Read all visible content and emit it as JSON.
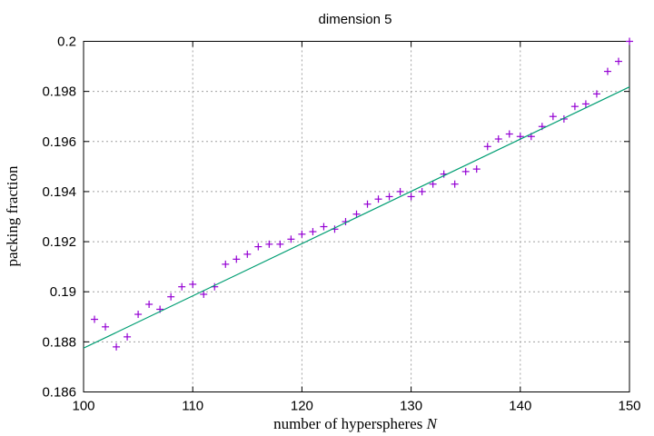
{
  "chart_data": {
    "type": "scatter",
    "title": "dimension 5",
    "xlabel_main": "number of hyperspheres ",
    "xlabel_var": "N",
    "ylabel": "packing fraction",
    "xlim": [
      100,
      150
    ],
    "ylim": [
      0.186,
      0.2
    ],
    "xticks": [
      100,
      110,
      120,
      130,
      140,
      150
    ],
    "yticks": [
      0.186,
      0.188,
      0.19,
      0.192,
      0.194,
      0.196,
      0.198,
      0.2
    ],
    "xtick_labels": [
      "100",
      "110",
      "120",
      "130",
      "140",
      "150"
    ],
    "ytick_labels": [
      "0.186",
      "0.188",
      "0.19",
      "0.192",
      "0.194",
      "0.196",
      "0.198",
      "0.2"
    ],
    "grid": true,
    "series": [
      {
        "marker": "plus",
        "color": "#9400d3",
        "x": [
          101,
          102,
          103,
          104,
          105,
          106,
          107,
          108,
          109,
          110,
          111,
          112,
          113,
          114,
          115,
          116,
          117,
          118,
          119,
          120,
          121,
          122,
          123,
          124,
          125,
          126,
          127,
          128,
          129,
          130,
          131,
          132,
          133,
          134,
          135,
          136,
          137,
          138,
          139,
          140,
          141,
          142,
          143,
          144,
          145,
          146,
          147,
          148,
          149,
          150
        ],
        "y": [
          0.1889,
          0.1886,
          0.1878,
          0.1882,
          0.1891,
          0.1895,
          0.1893,
          0.1898,
          0.1902,
          0.1903,
          0.1899,
          0.1902,
          0.1911,
          0.1913,
          0.1915,
          0.1918,
          0.1919,
          0.1919,
          0.1921,
          0.1923,
          0.1924,
          0.1926,
          0.1925,
          0.1928,
          0.1931,
          0.1935,
          0.1937,
          0.1938,
          0.194,
          0.1938,
          0.194,
          0.1943,
          0.1947,
          0.1943,
          0.1948,
          0.1949,
          0.1958,
          0.1961,
          0.1963,
          0.1962,
          0.1962,
          0.1966,
          0.197,
          0.1969,
          0.1974,
          0.1975,
          0.1979,
          0.1988,
          0.1992,
          0.2
        ]
      },
      {
        "marker": "line",
        "color": "#009e73",
        "x": [
          100,
          150
        ],
        "y": [
          0.18775,
          0.19818
        ]
      }
    ]
  }
}
